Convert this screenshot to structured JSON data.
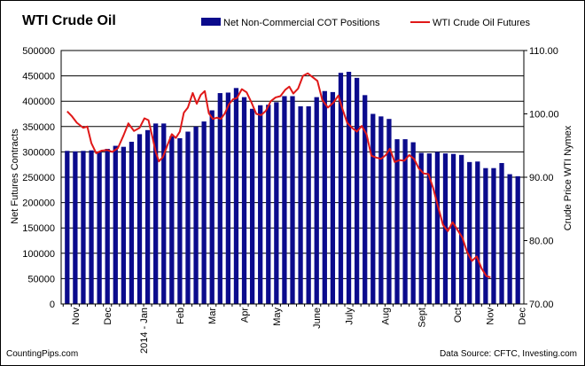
{
  "chart_data": {
    "type": "bar",
    "title": "WTI Crude Oil",
    "ylabel": "Net Futures Contracts",
    "y2label": "Crude Price WTI Nymex",
    "ylim": [
      0,
      500000
    ],
    "y2lim": [
      70,
      110
    ],
    "yticks": [
      "0",
      "50000",
      "100000",
      "150000",
      "200000",
      "250000",
      "300000",
      "350000",
      "400000",
      "450000",
      "500000"
    ],
    "y2ticks": [
      "70.00",
      "80.00",
      "90.00",
      "100.00",
      "110.00"
    ],
    "grid": true,
    "legend_position": "top",
    "xtick_labels": [
      {
        "label": "Nov",
        "week": 1
      },
      {
        "label": "Dec",
        "week": 5
      },
      {
        "label": "2014 - Jan",
        "week": 9.5
      },
      {
        "label": "Feb",
        "week": 14
      },
      {
        "label": "Mar",
        "week": 18
      },
      {
        "label": "Apr",
        "week": 22
      },
      {
        "label": "May",
        "week": 26
      },
      {
        "label": "June",
        "week": 31
      },
      {
        "label": "July",
        "week": 35
      },
      {
        "label": "Aug",
        "week": 39.5
      },
      {
        "label": "Sept",
        "week": 44
      },
      {
        "label": "Oct",
        "week": 48.5
      },
      {
        "label": "Nov",
        "week": 52.5
      },
      {
        "label": "Dec",
        "week": 56.5
      }
    ],
    "series": [
      {
        "name": "Net Non-Commercial COT Positions",
        "kind": "bar",
        "color": "#0b0b8c",
        "values": [
          302000,
          301000,
          302000,
          303000,
          300000,
          306000,
          312000,
          310000,
          320000,
          335000,
          343000,
          356000,
          356000,
          331000,
          327000,
          340000,
          350000,
          360000,
          382000,
          416000,
          417000,
          426000,
          408000,
          385000,
          392000,
          393000,
          398000,
          410000,
          410000,
          390000,
          390000,
          408000,
          420000,
          418000,
          456000,
          458000,
          446000,
          412000,
          375000,
          370000,
          365000,
          325000,
          325000,
          319000,
          298000,
          297000,
          300000,
          297000,
          296000,
          294000,
          280000,
          281000,
          268000,
          268000,
          278000,
          256000,
          252000
        ]
      },
      {
        "name": "WTI Crude Oil Futures",
        "kind": "line",
        "axis": "right",
        "color": "#e01818",
        "points": [
          [
            0,
            100.4
          ],
          [
            0.6,
            99.6
          ],
          [
            1.2,
            98.6
          ],
          [
            2,
            97.8
          ],
          [
            2.5,
            98.0
          ],
          [
            3,
            95.4
          ],
          [
            3.6,
            93.8
          ],
          [
            4.3,
            94.2
          ],
          [
            5,
            94.3
          ],
          [
            5.6,
            94.0
          ],
          [
            6.3,
            94.6
          ],
          [
            7,
            96.6
          ],
          [
            7.6,
            98.5
          ],
          [
            8.3,
            97.3
          ],
          [
            9,
            97.8
          ],
          [
            9.6,
            99.3
          ],
          [
            10.1,
            99.0
          ],
          [
            10.6,
            96.3
          ],
          [
            11,
            94.0
          ],
          [
            11.4,
            92.5
          ],
          [
            11.9,
            93.2
          ],
          [
            12.5,
            95.2
          ],
          [
            13,
            96.8
          ],
          [
            13.5,
            96.2
          ],
          [
            14,
            97.2
          ],
          [
            14.5,
            100.2
          ],
          [
            15,
            101.0
          ],
          [
            15.6,
            103.3
          ],
          [
            16.1,
            101.6
          ],
          [
            16.6,
            103.0
          ],
          [
            17.1,
            103.6
          ],
          [
            17.6,
            100.1
          ],
          [
            18.1,
            99.2
          ],
          [
            18.6,
            99.4
          ],
          [
            19.1,
            99.2
          ],
          [
            19.6,
            100.1
          ],
          [
            20.1,
            101.5
          ],
          [
            20.6,
            102.3
          ],
          [
            21.1,
            102.5
          ],
          [
            21.7,
            103.9
          ],
          [
            22.3,
            103.4
          ],
          [
            22.9,
            101.8
          ],
          [
            23.5,
            100.0
          ],
          [
            24.1,
            99.8
          ],
          [
            24.7,
            100.5
          ],
          [
            25.3,
            102.0
          ],
          [
            25.9,
            102.6
          ],
          [
            26.5,
            102.8
          ],
          [
            27.1,
            103.8
          ],
          [
            27.6,
            104.3
          ],
          [
            28.1,
            103.2
          ],
          [
            28.7,
            104.0
          ],
          [
            29.3,
            106.0
          ],
          [
            29.9,
            106.4
          ],
          [
            30.5,
            105.8
          ],
          [
            31.1,
            105.2
          ],
          [
            31.7,
            102.2
          ],
          [
            32.4,
            101.0
          ],
          [
            33.1,
            101.8
          ],
          [
            33.7,
            102.9
          ],
          [
            34.2,
            100.8
          ],
          [
            34.8,
            98.6
          ],
          [
            35.4,
            97.8
          ],
          [
            36.0,
            97.2
          ],
          [
            36.6,
            98.1
          ],
          [
            37.2,
            96.8
          ],
          [
            37.8,
            93.4
          ],
          [
            38.4,
            93.1
          ],
          [
            39.0,
            92.9
          ],
          [
            39.6,
            93.5
          ],
          [
            40.1,
            94.5
          ],
          [
            40.7,
            92.4
          ],
          [
            41.3,
            92.7
          ],
          [
            41.9,
            92.6
          ],
          [
            42.5,
            93.5
          ],
          [
            43.1,
            92.9
          ],
          [
            43.7,
            91.4
          ],
          [
            44.3,
            90.6
          ],
          [
            44.9,
            90.5
          ],
          [
            45.5,
            88.2
          ],
          [
            46.1,
            85.3
          ],
          [
            46.7,
            82.5
          ],
          [
            47.3,
            81.5
          ],
          [
            47.9,
            82.9
          ],
          [
            48.5,
            81.7
          ],
          [
            49.1,
            80.5
          ],
          [
            49.7,
            78.2
          ],
          [
            50.3,
            76.8
          ],
          [
            50.9,
            77.5
          ],
          [
            51.5,
            75.6
          ],
          [
            52.1,
            74.4
          ],
          [
            52.6,
            74.2
          ]
        ]
      }
    ]
  },
  "footer": {
    "left": "CountingPips.com",
    "right": "Data Source:  CFTC, Investing.com"
  }
}
